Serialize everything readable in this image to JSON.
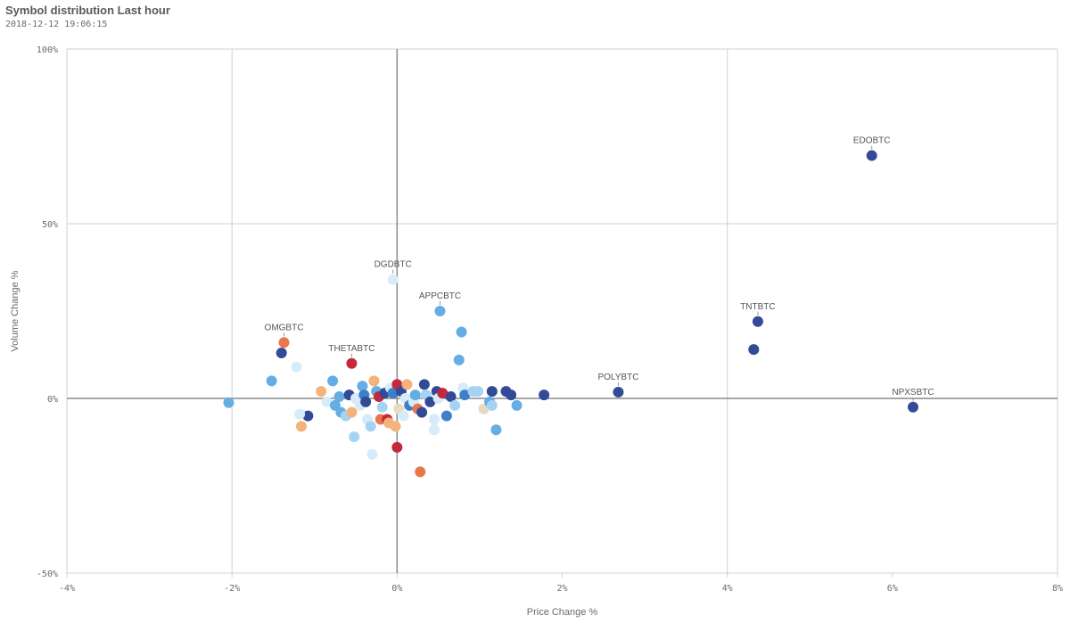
{
  "header": {
    "title": "Symbol distribution Last hour",
    "timestamp": "2018-12-12 19:06:15"
  },
  "chart_data": {
    "type": "scatter",
    "xlabel": "Price Change %",
    "ylabel": "Volume Change %",
    "xlim": [
      -4,
      8
    ],
    "ylim": [
      -50,
      100
    ],
    "x_ticks": [
      {
        "value": -4,
        "label": "-4%"
      },
      {
        "value": -2,
        "label": "-2%"
      },
      {
        "value": 0,
        "label": "0%"
      },
      {
        "value": 2,
        "label": "2%"
      },
      {
        "value": 4,
        "label": "4%"
      },
      {
        "value": 6,
        "label": "6%"
      },
      {
        "value": 8,
        "label": "8%"
      }
    ],
    "y_ticks": [
      {
        "value": 100,
        "label": "100%"
      },
      {
        "value": 50,
        "label": "50%"
      },
      {
        "value": 0,
        "label": "0%"
      },
      {
        "value": -50,
        "label": "-50%"
      }
    ],
    "colors": {
      "navy": "#334a96",
      "blue": "#3d7fc9",
      "mid": "#64aee3",
      "light": "#a5d3f3",
      "pale": "#d6ecfa",
      "beige": "#e8d9c2",
      "peach": "#f5b27a",
      "orange": "#e8774d",
      "red": "#c6283b",
      "grid": "#d0d0d0",
      "zero": "#8a8a8a"
    },
    "points": [
      {
        "label": "EDOBTC",
        "x": 5.75,
        "y": 69.5,
        "color": "navy"
      },
      {
        "label": "NPXSBTC",
        "x": 6.25,
        "y": -2.5,
        "color": "navy"
      },
      {
        "label": "TNTBTC",
        "x": 4.37,
        "y": 22,
        "color": "navy"
      },
      {
        "label": "",
        "x": 4.32,
        "y": 14,
        "color": "navy"
      },
      {
        "label": "POLYBTC",
        "x": 2.68,
        "y": 1.8,
        "color": "navy"
      },
      {
        "label": "DGDBTC",
        "x": -0.05,
        "y": 34,
        "color": "pale"
      },
      {
        "label": "APPCBTC",
        "x": 0.52,
        "y": 25,
        "color": "mid"
      },
      {
        "label": "OMGBTC",
        "x": -1.37,
        "y": 16,
        "color": "orange"
      },
      {
        "label": "THETABTC",
        "x": -0.55,
        "y": 10,
        "color": "red"
      },
      {
        "label": "",
        "x": -1.4,
        "y": 13,
        "color": "navy"
      },
      {
        "label": "",
        "x": -1.22,
        "y": 9,
        "color": "pale"
      },
      {
        "label": "",
        "x": -1.52,
        "y": 5,
        "color": "mid"
      },
      {
        "label": "",
        "x": -2.04,
        "y": -1.2,
        "color": "mid"
      },
      {
        "label": "",
        "x": -1.08,
        "y": -5,
        "color": "navy"
      },
      {
        "label": "",
        "x": -1.16,
        "y": -8,
        "color": "peach"
      },
      {
        "label": "",
        "x": -1.18,
        "y": -4.5,
        "color": "pale"
      },
      {
        "label": "",
        "x": -0.92,
        "y": 2,
        "color": "peach"
      },
      {
        "label": "",
        "x": -0.85,
        "y": -1,
        "color": "pale"
      },
      {
        "label": "",
        "x": -0.78,
        "y": 5,
        "color": "mid"
      },
      {
        "label": "",
        "x": -0.75,
        "y": -2,
        "color": "mid"
      },
      {
        "label": "",
        "x": -0.7,
        "y": 0.5,
        "color": "mid"
      },
      {
        "label": "",
        "x": -0.68,
        "y": -4,
        "color": "mid"
      },
      {
        "label": "",
        "x": -0.62,
        "y": -5,
        "color": "light"
      },
      {
        "label": "",
        "x": -0.58,
        "y": 1,
        "color": "navy"
      },
      {
        "label": "",
        "x": -0.55,
        "y": -4,
        "color": "peach"
      },
      {
        "label": "",
        "x": -0.52,
        "y": -11,
        "color": "light"
      },
      {
        "label": "",
        "x": -0.5,
        "y": 0,
        "color": "pale"
      },
      {
        "label": "",
        "x": -0.45,
        "y": -2,
        "color": "pale"
      },
      {
        "label": "",
        "x": -0.42,
        "y": 3.5,
        "color": "mid"
      },
      {
        "label": "",
        "x": -0.4,
        "y": 1,
        "color": "blue"
      },
      {
        "label": "",
        "x": -0.38,
        "y": -1,
        "color": "navy"
      },
      {
        "label": "",
        "x": -0.36,
        "y": -6,
        "color": "pale"
      },
      {
        "label": "",
        "x": -0.32,
        "y": -8,
        "color": "light"
      },
      {
        "label": "",
        "x": -0.3,
        "y": -16,
        "color": "pale"
      },
      {
        "label": "",
        "x": -0.28,
        "y": 5,
        "color": "peach"
      },
      {
        "label": "",
        "x": -0.25,
        "y": 2,
        "color": "mid"
      },
      {
        "label": "",
        "x": -0.22,
        "y": 0.5,
        "color": "red"
      },
      {
        "label": "",
        "x": -0.2,
        "y": -6,
        "color": "orange"
      },
      {
        "label": "",
        "x": -0.18,
        "y": -2.5,
        "color": "light"
      },
      {
        "label": "",
        "x": -0.15,
        "y": 1.5,
        "color": "navy"
      },
      {
        "label": "",
        "x": -0.12,
        "y": -6,
        "color": "red"
      },
      {
        "label": "",
        "x": -0.1,
        "y": -7,
        "color": "peach"
      },
      {
        "label": "",
        "x": -0.08,
        "y": 3,
        "color": "pale"
      },
      {
        "label": "",
        "x": -0.05,
        "y": 1.5,
        "color": "blue"
      },
      {
        "label": "",
        "x": -0.02,
        "y": -8,
        "color": "peach"
      },
      {
        "label": "",
        "x": 0.0,
        "y": -14,
        "color": "red"
      },
      {
        "label": "",
        "x": 0.0,
        "y": 4,
        "color": "red"
      },
      {
        "label": "",
        "x": 0.02,
        "y": -3,
        "color": "beige"
      },
      {
        "label": "",
        "x": 0.05,
        "y": 2,
        "color": "navy"
      },
      {
        "label": "",
        "x": 0.08,
        "y": -5,
        "color": "pale"
      },
      {
        "label": "",
        "x": 0.1,
        "y": 0,
        "color": "pale"
      },
      {
        "label": "",
        "x": 0.12,
        "y": 4,
        "color": "peach"
      },
      {
        "label": "",
        "x": 0.15,
        "y": -2,
        "color": "blue"
      },
      {
        "label": "",
        "x": 0.2,
        "y": -1,
        "color": "pale"
      },
      {
        "label": "",
        "x": 0.22,
        "y": 1,
        "color": "mid"
      },
      {
        "label": "",
        "x": 0.25,
        "y": -3,
        "color": "orange"
      },
      {
        "label": "",
        "x": 0.28,
        "y": -21,
        "color": "orange"
      },
      {
        "label": "",
        "x": 0.3,
        "y": -4,
        "color": "navy"
      },
      {
        "label": "",
        "x": 0.33,
        "y": 4,
        "color": "navy"
      },
      {
        "label": "",
        "x": 0.35,
        "y": 1,
        "color": "light"
      },
      {
        "label": "",
        "x": 0.4,
        "y": -1,
        "color": "navy"
      },
      {
        "label": "",
        "x": 0.45,
        "y": -6,
        "color": "pale"
      },
      {
        "label": "",
        "x": 0.48,
        "y": 2,
        "color": "navy"
      },
      {
        "label": "",
        "x": 0.5,
        "y": 0,
        "color": "pale"
      },
      {
        "label": "",
        "x": 0.55,
        "y": 1.5,
        "color": "red"
      },
      {
        "label": "",
        "x": 0.6,
        "y": -5,
        "color": "blue"
      },
      {
        "label": "",
        "x": 0.65,
        "y": 0.5,
        "color": "navy"
      },
      {
        "label": "",
        "x": 0.7,
        "y": -2,
        "color": "light"
      },
      {
        "label": "",
        "x": 0.75,
        "y": 11,
        "color": "mid"
      },
      {
        "label": "",
        "x": 0.78,
        "y": 19,
        "color": "mid"
      },
      {
        "label": "",
        "x": 0.8,
        "y": 3,
        "color": "pale"
      },
      {
        "label": "",
        "x": 0.82,
        "y": 1,
        "color": "blue"
      },
      {
        "label": "",
        "x": 0.45,
        "y": -9,
        "color": "pale"
      },
      {
        "label": "",
        "x": 0.92,
        "y": 2,
        "color": "light"
      },
      {
        "label": "",
        "x": 0.98,
        "y": 2,
        "color": "light"
      },
      {
        "label": "",
        "x": 1.05,
        "y": -3,
        "color": "beige"
      },
      {
        "label": "",
        "x": 1.12,
        "y": -1,
        "color": "mid"
      },
      {
        "label": "",
        "x": 1.15,
        "y": 2,
        "color": "navy"
      },
      {
        "label": "",
        "x": 1.2,
        "y": -9,
        "color": "mid"
      },
      {
        "label": "",
        "x": 1.32,
        "y": 2,
        "color": "navy"
      },
      {
        "label": "",
        "x": 1.38,
        "y": 1,
        "color": "navy"
      },
      {
        "label": "",
        "x": 1.45,
        "y": -2,
        "color": "mid"
      },
      {
        "label": "",
        "x": 1.78,
        "y": 1,
        "color": "navy"
      },
      {
        "label": "",
        "x": 1.15,
        "y": -2,
        "color": "light"
      }
    ]
  }
}
